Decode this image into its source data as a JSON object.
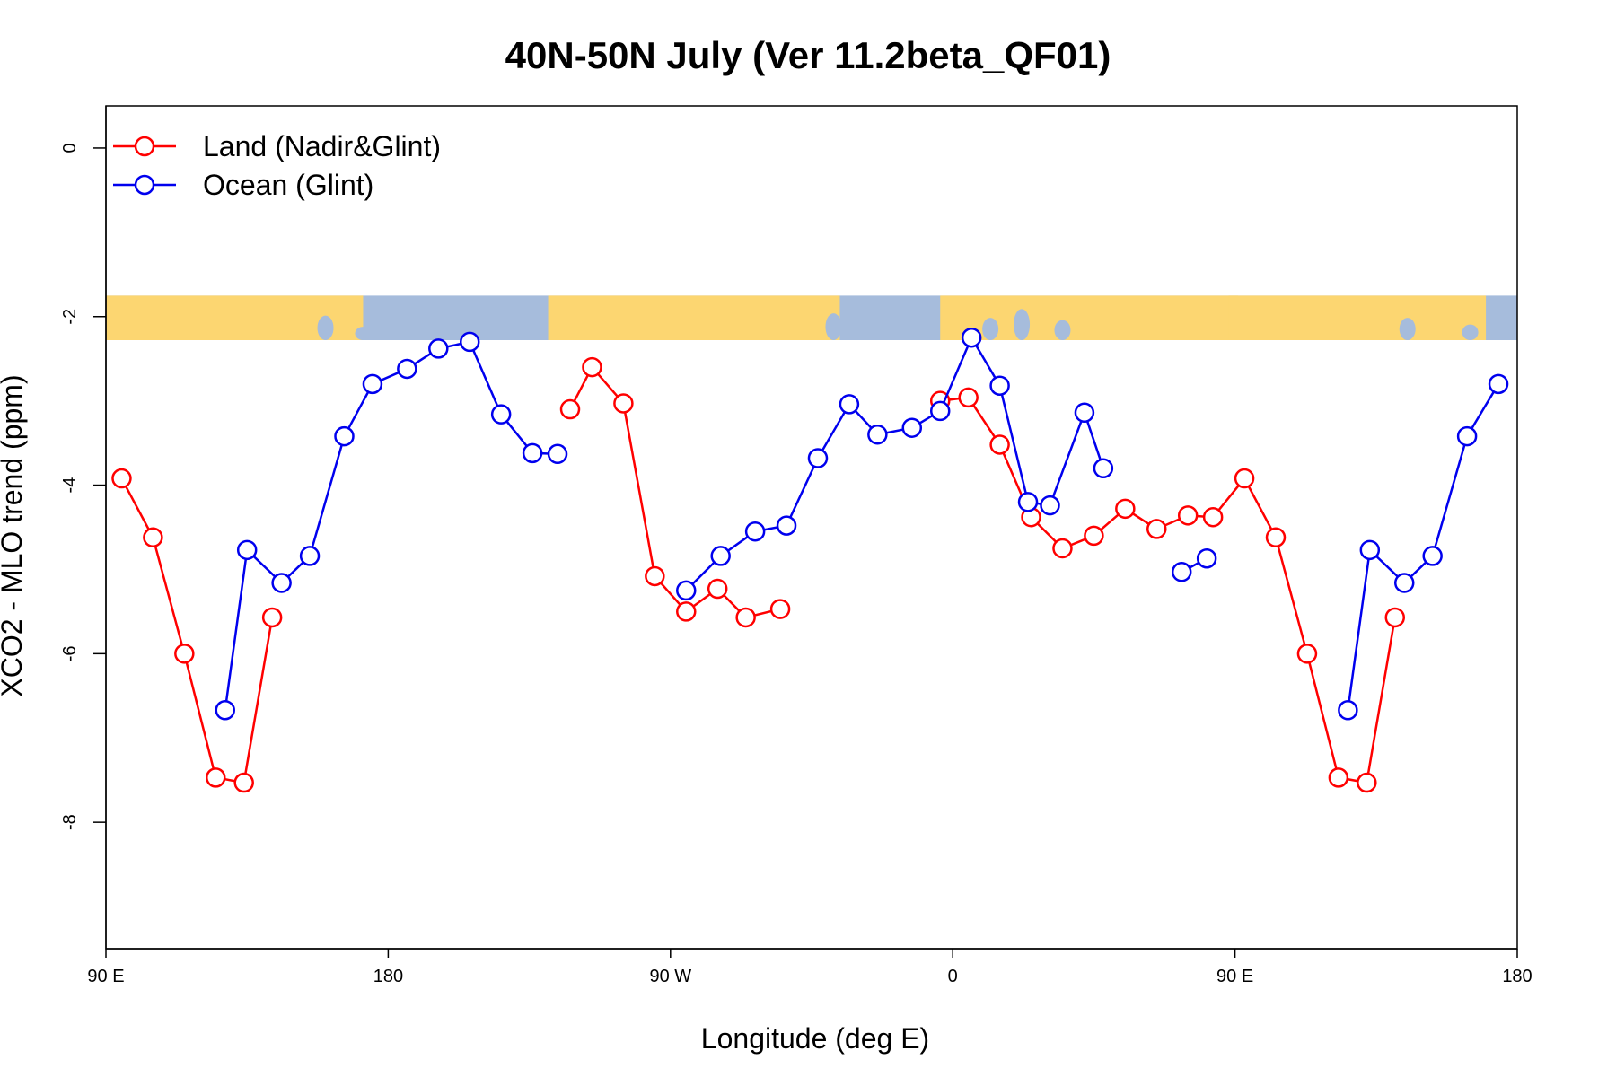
{
  "chart_data": {
    "type": "line",
    "title": "40N-50N July (Ver 11.2beta_QF01)",
    "xlabel": "Longitude (deg E)",
    "ylabel": "XCO2 - MLO trend (ppm)",
    "x_unwrapped_range": [
      90,
      540
    ],
    "ylim": [
      -9.5,
      0.5
    ],
    "xticks": [
      {
        "x": 90,
        "label": "90 E"
      },
      {
        "x": 180,
        "label": "180"
      },
      {
        "x": 270,
        "label": "90 W"
      },
      {
        "x": 360,
        "label": "0"
      },
      {
        "x": 450,
        "label": "90 E"
      },
      {
        "x": 540,
        "label": "180"
      }
    ],
    "yticks": [
      {
        "y": 0,
        "label": "0"
      },
      {
        "y": -2,
        "label": "-2"
      },
      {
        "y": -4,
        "label": "-4"
      },
      {
        "y": -6,
        "label": "-6"
      },
      {
        "y": -8,
        "label": "-8"
      }
    ],
    "legend": {
      "position": "top-left"
    },
    "colors": {
      "land": "#ff0000",
      "ocean": "#0000ee",
      "map_land": "#fcd671",
      "map_ocean": "#a6bcdc"
    },
    "map_strip": {
      "y_top": -1.75,
      "y_bottom": -2.28
    },
    "series": [
      {
        "name": "Land (Nadir&Glint)",
        "color_key": "land",
        "segments": [
          [
            [
              95,
              -3.92
            ],
            [
              105,
              -4.62
            ],
            [
              115,
              -6.0
            ],
            [
              125,
              -7.47
            ],
            [
              134,
              -7.53
            ],
            [
              143,
              -5.57
            ]
          ],
          [
            [
              238,
              -3.1
            ],
            [
              245,
              -2.6
            ],
            [
              255,
              -3.03
            ],
            [
              265,
              -5.08
            ],
            [
              275,
              -5.5
            ],
            [
              285,
              -5.23
            ],
            [
              294,
              -5.57
            ],
            [
              305,
              -5.47
            ]
          ],
          [
            [
              356,
              -3.0
            ],
            [
              365,
              -2.96
            ],
            [
              375,
              -3.52
            ],
            [
              385,
              -4.38
            ],
            [
              395,
              -4.75
            ],
            [
              405,
              -4.6
            ],
            [
              415,
              -4.28
            ],
            [
              425,
              -4.52
            ],
            [
              435,
              -4.36
            ],
            [
              443,
              -4.38
            ],
            [
              453,
              -3.92
            ],
            [
              463,
              -4.62
            ],
            [
              473,
              -6.0
            ],
            [
              483,
              -7.47
            ],
            [
              492,
              -7.53
            ],
            [
              501,
              -5.57
            ]
          ]
        ]
      },
      {
        "name": "Ocean (Glint)",
        "color_key": "ocean",
        "segments": [
          [
            [
              128,
              -6.67
            ],
            [
              135,
              -4.77
            ],
            [
              146,
              -5.16
            ],
            [
              155,
              -4.84
            ],
            [
              166,
              -3.42
            ],
            [
              175,
              -2.8
            ],
            [
              186,
              -2.62
            ],
            [
              196,
              -2.38
            ],
            [
              206,
              -2.3
            ],
            [
              216,
              -3.16
            ],
            [
              226,
              -3.62
            ],
            [
              234,
              -3.63
            ]
          ],
          [
            [
              275,
              -5.25
            ],
            [
              286,
              -4.84
            ],
            [
              297,
              -4.55
            ],
            [
              307,
              -4.48
            ],
            [
              317,
              -3.68
            ],
            [
              327,
              -3.04
            ],
            [
              336,
              -3.4
            ],
            [
              347,
              -3.32
            ],
            [
              356,
              -3.12
            ],
            [
              366,
              -2.25
            ],
            [
              375,
              -2.82
            ],
            [
              384,
              -4.2
            ],
            [
              391,
              -4.24
            ],
            [
              402,
              -3.14
            ],
            [
              408,
              -3.8
            ]
          ],
          [
            [
              433,
              -5.03
            ],
            [
              441,
              -4.87
            ]
          ],
          [
            [
              486,
              -6.67
            ],
            [
              493,
              -4.77
            ],
            [
              504,
              -5.16
            ],
            [
              513,
              -4.84
            ],
            [
              524,
              -3.42
            ],
            [
              534,
              -2.8
            ]
          ]
        ]
      }
    ]
  }
}
